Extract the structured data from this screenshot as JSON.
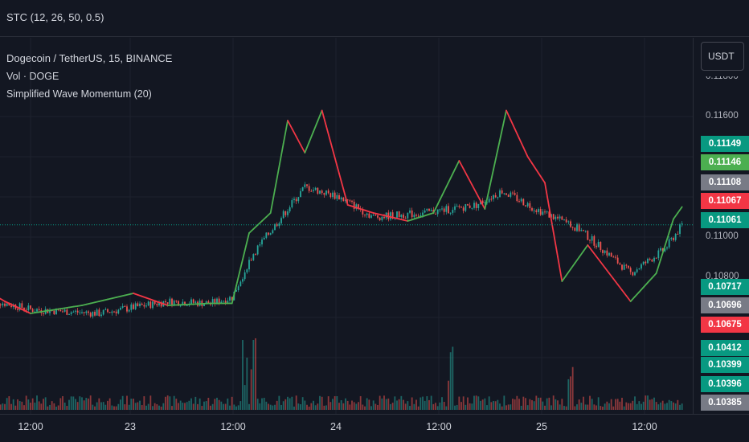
{
  "header": {
    "indicator": "STC (12, 26, 50, 0.5)"
  },
  "legend": {
    "symbol": "Dogecoin / TetherUS, 15, BINANCE",
    "volume": "Vol · DOGE",
    "study": "Simplified Wave Momentum (20)"
  },
  "currency_button": "USDT",
  "price_axis": {
    "ticks": [
      {
        "label": "0.11600",
        "value": 0.116
      },
      {
        "label": "0.11000",
        "value": 0.11
      },
      {
        "label": "0.10800",
        "value": 0.108
      }
    ],
    "top_partial_label": "0.11800",
    "tags": [
      {
        "label": "0.11149",
        "color": "#089981"
      },
      {
        "label": "0.11146",
        "color": "#4caf50"
      },
      {
        "label": "0.11108",
        "color": "#787b86"
      },
      {
        "label": "0.11067",
        "color": "#f23645"
      },
      {
        "label": "0.11061",
        "color": "#089981"
      },
      {
        "label": "0.10717",
        "color": "#089981"
      },
      {
        "label": "0.10696",
        "color": "#787b86"
      },
      {
        "label": "0.10675",
        "color": "#f23645"
      },
      {
        "label": "0.10412",
        "color": "#089981"
      },
      {
        "label": "0.10399",
        "color": "#089981"
      },
      {
        "label": "0.10396",
        "color": "#089981"
      },
      {
        "label": "0.10385",
        "color": "#787b86"
      }
    ]
  },
  "time_axis": {
    "ticks": [
      "12:00",
      "23",
      "12:00",
      "24",
      "12:00",
      "25",
      "12:00"
    ]
  },
  "colors": {
    "up": "#26a69a",
    "down": "#ef5350",
    "wave_up": "#4caf50",
    "wave_down": "#f23645",
    "last_price_line": "#089981",
    "grid": "#1e222d"
  },
  "chart_data": {
    "type": "candlestick",
    "symbol": "Dogecoin / TetherUS",
    "interval": "15",
    "exchange": "BINANCE",
    "ylim": [
      0.1038,
      0.1182
    ],
    "last_price": 0.11061,
    "price_anchors": [
      {
        "x": "22 07:00",
        "price": 0.1069
      },
      {
        "x": "22 12:00",
        "price": 0.1064
      },
      {
        "x": "22 20:00",
        "price": 0.1062
      },
      {
        "x": "23 04:00",
        "price": 0.1068
      },
      {
        "x": "23 09:00",
        "price": 0.1067
      },
      {
        "x": "23 11:30",
        "price": 0.107
      },
      {
        "x": "23 14:00",
        "price": 0.1092
      },
      {
        "x": "23 20:00",
        "price": 0.1125
      },
      {
        "x": "24 00:00",
        "price": 0.112
      },
      {
        "x": "24 04:00",
        "price": 0.111
      },
      {
        "x": "24 10:00",
        "price": 0.1112
      },
      {
        "x": "24 16:00",
        "price": 0.1116
      },
      {
        "x": "24 19:00",
        "price": 0.1123
      },
      {
        "x": "24 23:00",
        "price": 0.1114
      },
      {
        "x": "25 04:00",
        "price": 0.1104
      },
      {
        "x": "25 10:00",
        "price": 0.1082
      },
      {
        "x": "25 14:00",
        "price": 0.1094
      },
      {
        "x": "25 16:00",
        "price": 0.1106
      }
    ],
    "wave_momentum_anchors": [
      {
        "x": "22 07:00",
        "value": 0.1073
      },
      {
        "x": "22 09:00",
        "value": 0.1068
      },
      {
        "x": "22 12:00",
        "value": 0.1062
      },
      {
        "x": "22 18:00",
        "value": 0.1066
      },
      {
        "x": "23 00:00",
        "value": 0.1072
      },
      {
        "x": "23 04:00",
        "value": 0.1066
      },
      {
        "x": "23 09:00",
        "value": 0.1067
      },
      {
        "x": "23 11:30",
        "value": 0.1067
      },
      {
        "x": "23 13:30",
        "value": 0.1102
      },
      {
        "x": "23 16:00",
        "value": 0.1112
      },
      {
        "x": "23 18:00",
        "value": 0.1158
      },
      {
        "x": "23 20:00",
        "value": 0.1142
      },
      {
        "x": "23 22:00",
        "value": 0.1163
      },
      {
        "x": "24 01:00",
        "value": 0.1116
      },
      {
        "x": "24 04:00",
        "value": 0.1112
      },
      {
        "x": "24 08:00",
        "value": 0.1108
      },
      {
        "x": "24 11:00",
        "value": 0.1112
      },
      {
        "x": "24 14:00",
        "value": 0.1138
      },
      {
        "x": "24 17:00",
        "value": 0.1114
      },
      {
        "x": "24 19:30",
        "value": 0.1163
      },
      {
        "x": "24 22:00",
        "value": 0.114
      },
      {
        "x": "25 00:00",
        "value": 0.1127
      },
      {
        "x": "25 02:00",
        "value": 0.1078
      },
      {
        "x": "25 05:00",
        "value": 0.1096
      },
      {
        "x": "25 10:00",
        "value": 0.1068
      },
      {
        "x": "25 13:00",
        "value": 0.1082
      },
      {
        "x": "25 15:00",
        "value": 0.1109
      },
      {
        "x": "25 16:00",
        "value": 0.1115
      }
    ],
    "volume_spike_times": [
      "23 13:00",
      "23 14:00",
      "24 13:00",
      "25 03:00"
    ]
  }
}
